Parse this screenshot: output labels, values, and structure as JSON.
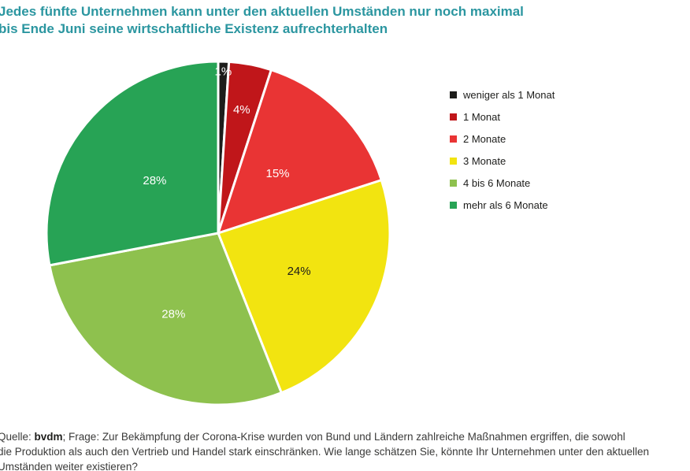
{
  "title": {
    "line1": "Jedes fünfte Unternehmen kann unter den aktuellen Umständen nur noch maximal",
    "line2": "bis Ende Juni seine wirtschaftliche Existenz aufrechterhalten",
    "color": "#2b96a0"
  },
  "chart_data": {
    "type": "pie",
    "title": "Jedes fünfte Unternehmen kann unter den aktuellen Umständen nur noch maximal bis Ende Juni seine wirtschaftliche Existenz aufrechterhalten",
    "unit": "%",
    "direction": "clockwise",
    "start_angle_deg": 0,
    "legend_position": "right",
    "slice_border_color": "#ffffff",
    "slices": [
      {
        "label": "weniger als 1 Monat",
        "value": 1,
        "display": "1%",
        "color": "#1d1d1b",
        "label_color": "#ffffff",
        "label_r": 0.94
      },
      {
        "label": "1 Monat",
        "value": 4,
        "display": "4%",
        "color": "#c0161a",
        "label_color": "#ffffff",
        "label_r": 0.73
      },
      {
        "label": "2 Monate",
        "value": 15,
        "display": "15%",
        "color": "#e93434",
        "label_color": "#ffffff",
        "label_r": 0.49
      },
      {
        "label": "3 Monate",
        "value": 24,
        "display": "24%",
        "color": "#f2e410",
        "label_color": "#1d1d1b",
        "label_r": 0.52
      },
      {
        "label": "4 bis 6 Monate",
        "value": 28,
        "display": "28%",
        "color": "#8ec14e",
        "label_color": "#ffffff",
        "label_r": 0.54
      },
      {
        "label": "mehr als 6 Monate",
        "value": 28,
        "display": "28%",
        "color": "#27a355",
        "label_color": "#ffffff",
        "label_r": 0.48
      }
    ]
  },
  "footer": {
    "prefix": "Quelle: ",
    "source_bold": "bvdm",
    "line1_rest": "; Frage: Zur Bekämpfung der Corona-Krise wurden von Bund und Ländern zahlreiche Maßnahmen ergriffen, die sowohl",
    "line2": "die Produktion als auch den Vertrieb und Handel stark einschränken. Wie lange schätzen Sie, könnte Ihr Unternehmen unter den aktuellen",
    "line3": "Umständen weiter existieren?"
  }
}
